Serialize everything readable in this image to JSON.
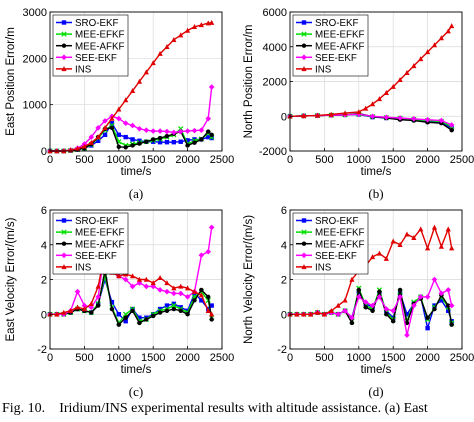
{
  "caption": {
    "label": "Fig. 10.",
    "text": "Iridium/INS experimental results with altitude assistance. (a) East"
  },
  "colors": {
    "SRO-EKF": "#0000ff",
    "MEE-EFKF": "#00e000",
    "MEE-AFKF": "#000000",
    "SEE-EKF": "#ff00ff",
    "INS": "#e00000"
  },
  "chart_data": [
    {
      "type": "line",
      "panel_label": "(a)",
      "ylabel": "East Position Error/m",
      "xlabel": "time/s",
      "xlim": [
        0,
        2500
      ],
      "ylim": [
        0,
        3000
      ],
      "xticks": [
        0,
        500,
        1000,
        1500,
        2000,
        2500
      ],
      "yticks": [
        0,
        1000,
        2000,
        3000
      ],
      "legend": "top-left",
      "grid": true,
      "series": [
        {
          "name": "SRO-EKF",
          "x": [
            0,
            100,
            200,
            300,
            400,
            500,
            600,
            700,
            800,
            900,
            1000,
            1100,
            1200,
            1300,
            1400,
            1500,
            1600,
            1700,
            1800,
            1900,
            2000,
            2100,
            2200,
            2300,
            2350
          ],
          "y": [
            0,
            0,
            0,
            10,
            30,
            60,
            120,
            220,
            350,
            600,
            350,
            300,
            250,
            220,
            200,
            200,
            190,
            190,
            190,
            200,
            230,
            250,
            250,
            300,
            280
          ]
        },
        {
          "name": "MEE-EFKF",
          "x": [
            0,
            100,
            200,
            300,
            400,
            500,
            600,
            700,
            800,
            900,
            1000,
            1100,
            1200,
            1300,
            1400,
            1500,
            1600,
            1700,
            1800,
            1900,
            2000,
            2100,
            2200,
            2300,
            2350
          ],
          "y": [
            0,
            0,
            0,
            10,
            30,
            60,
            140,
            280,
            450,
            550,
            200,
            120,
            150,
            180,
            200,
            230,
            260,
            300,
            350,
            480,
            150,
            220,
            260,
            380,
            300
          ]
        },
        {
          "name": "MEE-AFKF",
          "x": [
            0,
            100,
            200,
            300,
            400,
            500,
            600,
            700,
            800,
            900,
            1000,
            1100,
            1200,
            1300,
            1400,
            1500,
            1600,
            1700,
            1800,
            1900,
            2000,
            2100,
            2200,
            2300,
            2350
          ],
          "y": [
            0,
            0,
            0,
            10,
            30,
            60,
            150,
            300,
            480,
            500,
            90,
            80,
            120,
            160,
            200,
            250,
            280,
            320,
            370,
            420,
            120,
            180,
            250,
            420,
            350
          ]
        },
        {
          "name": "SEE-EKF",
          "x": [
            0,
            100,
            200,
            300,
            400,
            500,
            600,
            700,
            800,
            900,
            1000,
            1100,
            1200,
            1300,
            1400,
            1500,
            1600,
            1700,
            1800,
            1900,
            2000,
            2100,
            2200,
            2300,
            2350
          ],
          "y": [
            0,
            0,
            0,
            20,
            60,
            150,
            300,
            500,
            650,
            750,
            700,
            600,
            550,
            480,
            450,
            430,
            430,
            420,
            400,
            420,
            430,
            440,
            450,
            700,
            1380
          ]
        },
        {
          "name": "INS",
          "x": [
            0,
            100,
            200,
            300,
            400,
            500,
            600,
            700,
            800,
            900,
            1000,
            1100,
            1200,
            1300,
            1400,
            1500,
            1600,
            1700,
            1800,
            1900,
            2000,
            2100,
            2200,
            2300,
            2350
          ],
          "y": [
            0,
            0,
            0,
            20,
            50,
            100,
            180,
            300,
            500,
            700,
            900,
            1100,
            1300,
            1500,
            1700,
            1900,
            2100,
            2250,
            2400,
            2500,
            2600,
            2680,
            2720,
            2760,
            2770
          ]
        }
      ]
    },
    {
      "type": "line",
      "panel_label": "(b)",
      "ylabel": "North Position Error/m",
      "xlabel": "time/s",
      "xlim": [
        0,
        2500
      ],
      "ylim": [
        -2000,
        6000
      ],
      "xticks": [
        0,
        500,
        1000,
        1500,
        2000,
        2500
      ],
      "yticks": [
        -2000,
        0,
        2000,
        4000,
        6000
      ],
      "legend": "top-left",
      "grid": true,
      "series": [
        {
          "name": "SRO-EKF",
          "x": [
            0,
            200,
            400,
            600,
            800,
            1000,
            1200,
            1400,
            1600,
            1800,
            2000,
            2200,
            2350
          ],
          "y": [
            0,
            20,
            40,
            60,
            80,
            100,
            -50,
            -100,
            -150,
            -200,
            -300,
            -350,
            -700
          ]
        },
        {
          "name": "MEE-EFKF",
          "x": [
            0,
            200,
            400,
            600,
            800,
            1000,
            1200,
            1400,
            1600,
            1800,
            2000,
            2200,
            2350
          ],
          "y": [
            0,
            20,
            40,
            60,
            80,
            120,
            -30,
            -80,
            -120,
            -180,
            -250,
            -300,
            -600
          ]
        },
        {
          "name": "MEE-AFKF",
          "x": [
            0,
            200,
            400,
            600,
            800,
            1000,
            1200,
            1400,
            1600,
            1800,
            2000,
            2200,
            2350
          ],
          "y": [
            0,
            20,
            40,
            60,
            80,
            150,
            -20,
            -100,
            -200,
            -250,
            -350,
            -400,
            -800
          ]
        },
        {
          "name": "SEE-EKF",
          "x": [
            0,
            200,
            400,
            600,
            800,
            1000,
            1200,
            1400,
            1600,
            1800,
            2000,
            2200,
            2350
          ],
          "y": [
            0,
            20,
            40,
            60,
            80,
            120,
            0,
            -60,
            -100,
            -150,
            -200,
            -250,
            -500
          ]
        },
        {
          "name": "INS",
          "x": [
            0,
            200,
            400,
            600,
            800,
            1000,
            1100,
            1200,
            1300,
            1400,
            1500,
            1600,
            1700,
            1800,
            1900,
            2000,
            2100,
            2200,
            2300,
            2350
          ],
          "y": [
            0,
            20,
            50,
            100,
            180,
            250,
            450,
            700,
            1000,
            1350,
            1700,
            2100,
            2500,
            2900,
            3300,
            3700,
            4100,
            4500,
            4900,
            5200
          ]
        }
      ]
    },
    {
      "type": "line",
      "panel_label": "(c)",
      "ylabel": "East Velocity Error/(m/s)",
      "xlabel": "time/s",
      "xlim": [
        0,
        2500
      ],
      "ylim": [
        -2,
        6
      ],
      "xticks": [
        0,
        500,
        1000,
        1500,
        2000,
        2500
      ],
      "yticks": [
        -2,
        0,
        2,
        4,
        6
      ],
      "legend": "top-left",
      "grid": true,
      "series": [
        {
          "name": "SRO-EKF",
          "x": [
            0,
            100,
            200,
            300,
            400,
            500,
            600,
            700,
            800,
            900,
            1000,
            1100,
            1200,
            1300,
            1400,
            1500,
            1600,
            1700,
            1800,
            1900,
            2000,
            2100,
            2200,
            2300,
            2350
          ],
          "y": [
            0,
            0,
            0,
            0.1,
            0.3,
            0.2,
            0.1,
            0.6,
            2.0,
            0.7,
            0,
            -0.4,
            0.3,
            -0.2,
            -0.2,
            0,
            0.3,
            0.5,
            0.6,
            0.4,
            0.2,
            1.2,
            0.8,
            0.3,
            0.5
          ]
        },
        {
          "name": "MEE-EFKF",
          "x": [
            0,
            100,
            200,
            300,
            400,
            500,
            600,
            700,
            800,
            900,
            1000,
            1100,
            1200,
            1300,
            1400,
            1500,
            1600,
            1700,
            1800,
            1900,
            2000,
            2100,
            2200,
            2300,
            2350
          ],
          "y": [
            0,
            0,
            0,
            0.1,
            0.3,
            0.2,
            0.1,
            0.6,
            2.2,
            0.4,
            -0.5,
            0,
            0.3,
            -0.4,
            -0.3,
            0,
            0.2,
            0.3,
            0.5,
            0.3,
            0.1,
            1.0,
            1.3,
            0.8,
            -0.2
          ]
        },
        {
          "name": "MEE-AFKF",
          "x": [
            0,
            100,
            200,
            300,
            400,
            500,
            600,
            700,
            800,
            900,
            1000,
            1100,
            1200,
            1300,
            1400,
            1500,
            1600,
            1700,
            1800,
            1900,
            2000,
            2100,
            2200,
            2300,
            2350
          ],
          "y": [
            0,
            0,
            0,
            0.1,
            0.3,
            0.2,
            0.1,
            0.5,
            2.5,
            0.3,
            -0.6,
            -0.2,
            0.2,
            -0.5,
            -0.3,
            -0.1,
            0.1,
            0.2,
            0.3,
            0.2,
            0,
            0.8,
            1.4,
            1.0,
            -0.3
          ]
        },
        {
          "name": "SEE-EKF",
          "x": [
            0,
            100,
            200,
            300,
            400,
            500,
            600,
            700,
            800,
            900,
            1000,
            1100,
            1200,
            1300,
            1400,
            1500,
            1600,
            1700,
            1800,
            1900,
            2000,
            2100,
            2200,
            2300,
            2350
          ],
          "y": [
            0,
            0,
            0,
            0.2,
            1.3,
            0.5,
            0.4,
            1.0,
            3.8,
            2.6,
            2.2,
            2.0,
            1.6,
            1.8,
            1.6,
            1.6,
            1.4,
            1.3,
            1.2,
            1.2,
            1.0,
            1.3,
            3.4,
            3.6,
            5.0
          ]
        },
        {
          "name": "INS",
          "x": [
            0,
            100,
            200,
            300,
            400,
            500,
            600,
            700,
            800,
            900,
            1000,
            1100,
            1200,
            1300,
            1400,
            1500,
            1600,
            1700,
            1800,
            1900,
            2000,
            2100,
            2200,
            2300,
            2350
          ],
          "y": [
            0,
            0,
            0.1,
            0.2,
            0.4,
            0.3,
            0.6,
            1.6,
            3.6,
            2.4,
            2.2,
            2.3,
            2.2,
            2.0,
            2.0,
            1.8,
            2.1,
            1.8,
            1.5,
            1.6,
            1.5,
            1.3,
            1.1,
            0.2,
            0
          ]
        }
      ]
    },
    {
      "type": "line",
      "panel_label": "(d)",
      "ylabel": "North Velocity Error/(m/s)",
      "xlabel": "time/s",
      "xlim": [
        0,
        2500
      ],
      "ylim": [
        -2,
        6
      ],
      "xticks": [
        0,
        500,
        1000,
        1500,
        2000,
        2500
      ],
      "yticks": [
        -2,
        0,
        2,
        4,
        6
      ],
      "legend": "top-left",
      "grid": true,
      "series": [
        {
          "name": "SRO-EKF",
          "x": [
            0,
            100,
            200,
            300,
            400,
            500,
            600,
            700,
            800,
            900,
            1000,
            1100,
            1200,
            1300,
            1400,
            1500,
            1600,
            1700,
            1800,
            1900,
            2000,
            2100,
            2200,
            2300,
            2350
          ],
          "y": [
            0,
            0,
            0,
            0,
            0.1,
            0,
            0.1,
            0,
            0.2,
            -0.2,
            1.3,
            0.6,
            0.4,
            1.2,
            0.2,
            -0.2,
            1.2,
            0,
            0.6,
            1.0,
            -0.8,
            0.5,
            0.8,
            0.2,
            -0.4
          ]
        },
        {
          "name": "MEE-EFKF",
          "x": [
            0,
            100,
            200,
            300,
            400,
            500,
            600,
            700,
            800,
            900,
            1000,
            1100,
            1200,
            1300,
            1400,
            1500,
            1600,
            1700,
            1800,
            1900,
            2000,
            2100,
            2200,
            2300,
            2350
          ],
          "y": [
            0,
            0,
            0,
            0,
            0.1,
            0,
            0.1,
            0,
            0.2,
            -0.4,
            1.5,
            0.5,
            0.3,
            1.4,
            0.1,
            -0.3,
            1.3,
            -0.4,
            0.7,
            1.0,
            -0.3,
            0.4,
            1.0,
            0.4,
            -0.5
          ]
        },
        {
          "name": "MEE-AFKF",
          "x": [
            0,
            100,
            200,
            300,
            400,
            500,
            600,
            700,
            800,
            900,
            1000,
            1100,
            1200,
            1300,
            1400,
            1500,
            1600,
            1700,
            1800,
            1900,
            2000,
            2100,
            2200,
            2300,
            2350
          ],
          "y": [
            0,
            0,
            0,
            0,
            0.1,
            0,
            0.1,
            0,
            0.2,
            -0.5,
            1.4,
            0.4,
            0.2,
            1.3,
            0,
            -0.4,
            1.4,
            -0.5,
            0.6,
            0.9,
            -0.2,
            0.3,
            1.1,
            0.5,
            -0.6
          ]
        },
        {
          "name": "SEE-EKF",
          "x": [
            0,
            100,
            200,
            300,
            400,
            500,
            600,
            700,
            800,
            900,
            1000,
            1100,
            1200,
            1300,
            1400,
            1500,
            1600,
            1700,
            1800,
            1900,
            2000,
            2100,
            2200,
            2300,
            2350
          ],
          "y": [
            0,
            0,
            0,
            0,
            0.1,
            0,
            0.1,
            0,
            0.2,
            -0.2,
            1.0,
            0.7,
            0.5,
            1.0,
            0.3,
            0.2,
            1.0,
            -1.2,
            0.5,
            1.0,
            1.0,
            2.0,
            1.2,
            1.4,
            0.5
          ]
        },
        {
          "name": "INS",
          "x": [
            0,
            100,
            200,
            300,
            400,
            500,
            600,
            700,
            800,
            900,
            1000,
            1100,
            1200,
            1300,
            1400,
            1500,
            1600,
            1700,
            1800,
            1900,
            2000,
            2100,
            2200,
            2300,
            2350
          ],
          "y": [
            0,
            0,
            0,
            0,
            0.1,
            0,
            0.2,
            0.5,
            0.8,
            2.0,
            2.5,
            2.8,
            3.3,
            3.5,
            3.2,
            4.2,
            4.0,
            4.6,
            4.4,
            4.9,
            3.8,
            5.0,
            3.9,
            4.9,
            3.8
          ]
        }
      ]
    }
  ]
}
